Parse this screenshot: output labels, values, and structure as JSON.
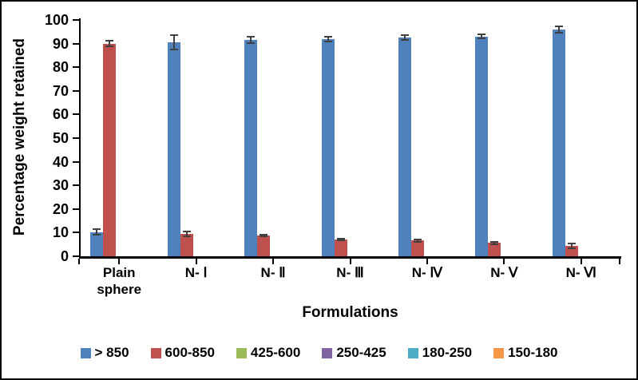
{
  "figure": {
    "background": "#FFFFFF",
    "border_color": "#000000",
    "error_bar_color": "#404040"
  },
  "chart_data": {
    "type": "bar",
    "title": "",
    "xlabel": "Formulations",
    "ylabel": "Percentage weight retained",
    "ylim": [
      0,
      100
    ],
    "ytick_step": 10,
    "ytick_labels": [
      "0",
      "10",
      "20",
      "30",
      "40",
      "50",
      "60",
      "70",
      "80",
      "90",
      "100"
    ],
    "categories": [
      "Plain sphere",
      "N- Ⅰ",
      "N- Ⅱ",
      "N- Ⅲ",
      "N- Ⅳ",
      "N- Ⅴ",
      "N- Ⅵ"
    ],
    "grid": false,
    "legend_position": "bottom",
    "series": [
      {
        "name": "> 850",
        "color": "#4F81BD",
        "values": [
          10.3,
          90.5,
          91.5,
          92,
          92.5,
          93,
          96
        ],
        "errors": [
          1.2,
          3.0,
          1.3,
          1.0,
          1.0,
          0.9,
          1.3
        ]
      },
      {
        "name": "600-850",
        "color": "#C0504D",
        "values": [
          90,
          9.5,
          8.7,
          7,
          6.6,
          5.6,
          4.3
        ],
        "errors": [
          1.3,
          1.0,
          0.4,
          0.3,
          0.4,
          0.4,
          1.0
        ]
      },
      {
        "name": "425-600",
        "color": "#9BBB59",
        "values": [
          0,
          0,
          0,
          0,
          0,
          0,
          0
        ],
        "errors": [
          0,
          0,
          0,
          0,
          0,
          0,
          0
        ]
      },
      {
        "name": "250-425",
        "color": "#8064A2",
        "values": [
          0,
          0,
          0,
          0,
          0,
          0,
          0
        ],
        "errors": [
          0,
          0,
          0,
          0,
          0,
          0,
          0
        ]
      },
      {
        "name": "180-250",
        "color": "#4BACC6",
        "values": [
          0,
          0,
          0,
          0,
          0,
          0,
          0
        ],
        "errors": [
          0,
          0,
          0,
          0,
          0,
          0,
          0
        ]
      },
      {
        "name": "150-180",
        "color": "#F79646",
        "values": [
          0,
          0,
          0,
          0,
          0,
          0,
          0
        ],
        "errors": [
          0,
          0,
          0,
          0,
          0,
          0,
          0
        ]
      }
    ]
  }
}
